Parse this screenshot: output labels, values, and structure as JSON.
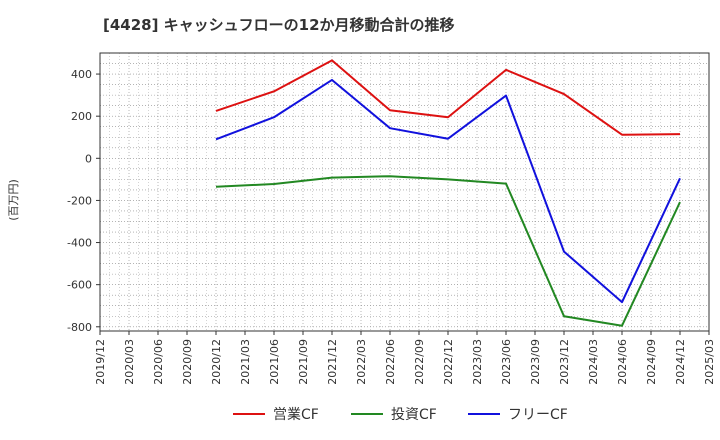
{
  "chart_data": {
    "type": "line",
    "title": "[4428]  キャッシュフローの12か月移動合計の推移",
    "ylabel": "(百万円)",
    "xlabel": "",
    "ylim": [
      -820,
      500
    ],
    "yticks": [
      400,
      200,
      0,
      -200,
      -400,
      -600,
      -800
    ],
    "x_ticks": [
      "2019/12",
      "2020/03",
      "2020/06",
      "2020/09",
      "2020/12",
      "2021/03",
      "2021/06",
      "2021/09",
      "2021/12",
      "2022/03",
      "2022/06",
      "2022/09",
      "2022/12",
      "2023/03",
      "2023/06",
      "2023/09",
      "2023/12",
      "2024/03",
      "2024/06",
      "2024/09",
      "2024/12",
      "2025/03"
    ],
    "x": [
      "2020/12",
      "2021/06",
      "2021/12",
      "2022/06",
      "2022/12",
      "2023/06",
      "2023/12",
      "2024/06",
      "2024/12"
    ],
    "series": [
      {
        "name": "営業CF",
        "color": "#dd1111",
        "values": [
          225,
          318,
          465,
          228,
          195,
          420,
          305,
          112,
          115
        ]
      },
      {
        "name": "投資CF",
        "color": "#228822",
        "values": [
          -135,
          -122,
          -92,
          -85,
          -100,
          -120,
          -750,
          -795,
          -208
        ]
      },
      {
        "name": "フリーCF",
        "color": "#1111dd",
        "values": [
          90,
          195,
          372,
          143,
          93,
          298,
          -443,
          -683,
          -95
        ]
      }
    ],
    "grid": true,
    "legend_position": "bottom"
  }
}
